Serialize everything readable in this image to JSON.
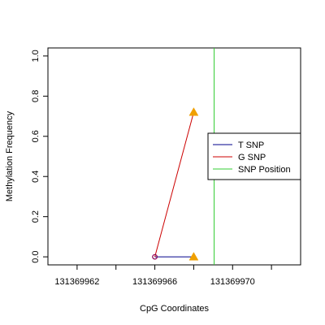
{
  "chart_data": {
    "type": "line",
    "xlabel": "CpG Coordinates",
    "ylabel": "Methylation Frequency",
    "xlim": [
      131369960.5,
      131369973.5
    ],
    "ylim": [
      -0.04,
      1.04
    ],
    "x_ticks": [
      131369962,
      131369964,
      131369966,
      131369968,
      131369970,
      131369972
    ],
    "x_tick_labels": [
      "131369962",
      "",
      "131369966",
      "",
      "131369970",
      ""
    ],
    "y_ticks": [
      0.0,
      0.2,
      0.4,
      0.6,
      0.8,
      1.0
    ],
    "y_tick_labels": [
      "0.0",
      "0.2",
      "0.4",
      "0.6",
      "0.8",
      "1.0"
    ],
    "grid": false,
    "legend_position": "right",
    "series": [
      {
        "name": "T SNP",
        "color": "#00008B",
        "x": [
          131369966,
          131369968
        ],
        "y": [
          0.0,
          0.0
        ]
      },
      {
        "name": "G SNP",
        "color": "#CC0000",
        "x": [
          131369966,
          131369968
        ],
        "y": [
          0.0,
          0.72
        ]
      }
    ],
    "markers": [
      {
        "shape": "circle-open",
        "color": "#8B0055",
        "x": 131369966,
        "y": 0.0
      },
      {
        "shape": "triangle",
        "color": "#F0A000",
        "x": 131369968,
        "y": 0.72
      },
      {
        "shape": "triangle",
        "color": "#F0A000",
        "x": 131369968,
        "y": 0.0
      }
    ],
    "snp_position": {
      "name": "SNP Position",
      "color": "#33CC33",
      "x": 131369969.05
    },
    "legend": [
      {
        "label": "T SNP",
        "color": "#00008B"
      },
      {
        "label": "G SNP",
        "color": "#CC0000"
      },
      {
        "label": "SNP Position",
        "color": "#33CC33"
      }
    ]
  }
}
